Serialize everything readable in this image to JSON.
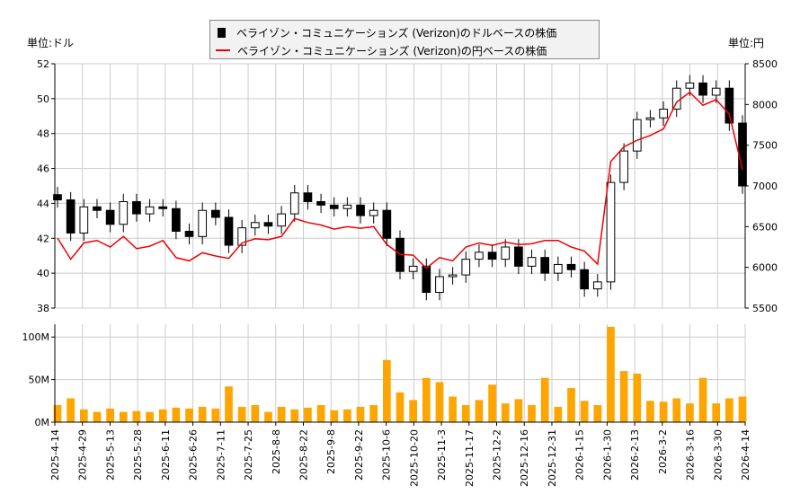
{
  "legend": {
    "usd_label": "ベライゾン・コミュニケーションズ (Verizon)のドルベースの株価",
    "jpy_label": "ベライゾン・コミュニケーションズ (Verizon)の円ベースの株価"
  },
  "units": {
    "left": "単位:ドル",
    "right": "単位:円"
  },
  "colors": {
    "candle": "#000000",
    "jpy_line": "#ee0000",
    "volume": "#ffa500",
    "grid": "#cccccc"
  },
  "chart_data": {
    "type": "candlestick+line+bar",
    "grid": true,
    "legend_placement": "top-center",
    "usd_axis": {
      "ylim": [
        38,
        52
      ],
      "ticks": [
        38,
        40,
        42,
        44,
        46,
        48,
        50,
        52
      ]
    },
    "jpy_axis": {
      "ylim": [
        5500,
        8500
      ],
      "ticks": [
        5500,
        6000,
        6500,
        7000,
        7500,
        8000,
        8500
      ]
    },
    "volume_axis": {
      "ylim": [
        0,
        115
      ],
      "ticks": [
        {
          "v": 0,
          "label": "0M"
        },
        {
          "v": 50,
          "label": "50M"
        },
        {
          "v": 100,
          "label": "100M"
        }
      ]
    },
    "xticks": [
      "2025-4-14",
      "2025-4-29",
      "2025-5-13",
      "2025-5-28",
      "2025-6-11",
      "2025-6-26",
      "2025-7-11",
      "2025-7-25",
      "2025-8-8",
      "2025-8-22",
      "2025-9-8",
      "2025-9-22",
      "2025-10-6",
      "2025-10-20",
      "2025-11-3",
      "2025-11-17",
      "2025-12-2",
      "2025-12-16",
      "2025-12-31",
      "2026-1-15",
      "2026-1-30",
      "2026-2-13",
      "2026-3-2",
      "2026-3-16",
      "2026-3-30",
      "2026-4-14"
    ],
    "usd_close": [
      44.2,
      42.3,
      43.8,
      43.6,
      42.8,
      44.1,
      43.4,
      43.8,
      43.7,
      42.4,
      42.1,
      43.6,
      43.2,
      41.6,
      42.6,
      42.9,
      42.7,
      43.4,
      44.6,
      44.1,
      43.9,
      43.7,
      43.9,
      43.3,
      43.6,
      42.0,
      40.1,
      40.4,
      38.9,
      39.8,
      39.9,
      40.8,
      41.2,
      40.8,
      41.5,
      40.4,
      40.9,
      40.0,
      40.5,
      40.2,
      39.1,
      39.5,
      45.2,
      47.0,
      48.8,
      48.9,
      49.4,
      50.6,
      50.9,
      50.2,
      50.6,
      48.6,
      45.0
    ],
    "jpy_close": [
      6360,
      6100,
      6300,
      6330,
      6250,
      6380,
      6230,
      6260,
      6330,
      6120,
      6080,
      6180,
      6140,
      6110,
      6300,
      6350,
      6340,
      6380,
      6600,
      6550,
      6520,
      6470,
      6500,
      6480,
      6500,
      6280,
      6160,
      6150,
      5990,
      6120,
      6080,
      6250,
      6300,
      6270,
      6310,
      6280,
      6290,
      6330,
      6330,
      6250,
      6200,
      6040,
      7300,
      7480,
      7560,
      7620,
      7700,
      8030,
      8150,
      7990,
      8060,
      7880,
      7200
    ],
    "volume_millions": [
      20,
      28,
      15,
      12,
      16,
      12,
      13,
      12,
      15,
      17,
      16,
      18,
      16,
      42,
      18,
      20,
      12,
      18,
      15,
      17,
      20,
      14,
      15,
      18,
      20,
      73,
      35,
      26,
      52,
      47,
      30,
      20,
      26,
      44,
      22,
      27,
      20,
      52,
      18,
      40,
      25,
      20,
      112,
      60,
      57,
      25,
      24,
      28,
      22,
      52,
      22,
      28,
      30
    ]
  }
}
